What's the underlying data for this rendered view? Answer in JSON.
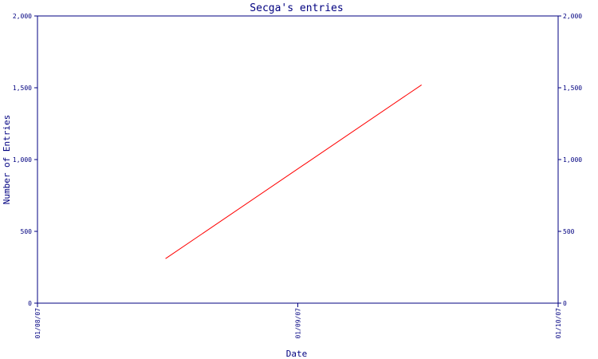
{
  "chart_data": {
    "type": "line",
    "title": "Secga's entries",
    "xlabel": "Date",
    "ylabel": "Number of Entries",
    "x_ticks": [
      "01/08/07",
      "01/09/07",
      "01/10/07"
    ],
    "y_ticks": [
      "0",
      "500",
      "1,000",
      "1,500",
      "2,000"
    ],
    "y_tick_values": [
      0,
      500,
      1000,
      1500,
      2000
    ],
    "ylim": [
      0,
      2000
    ],
    "xlim": [
      "2007-08-01",
      "2007-10-01"
    ],
    "secondary_y_axis": true,
    "grid": false,
    "series": [
      {
        "color": "#ff0000",
        "points": [
          {
            "x": "2007-08-16",
            "y": 310
          },
          {
            "x": "2007-09-15",
            "y": 1520
          }
        ]
      }
    ]
  },
  "colors": {
    "axis": "#000080",
    "background": "#ffffff"
  }
}
